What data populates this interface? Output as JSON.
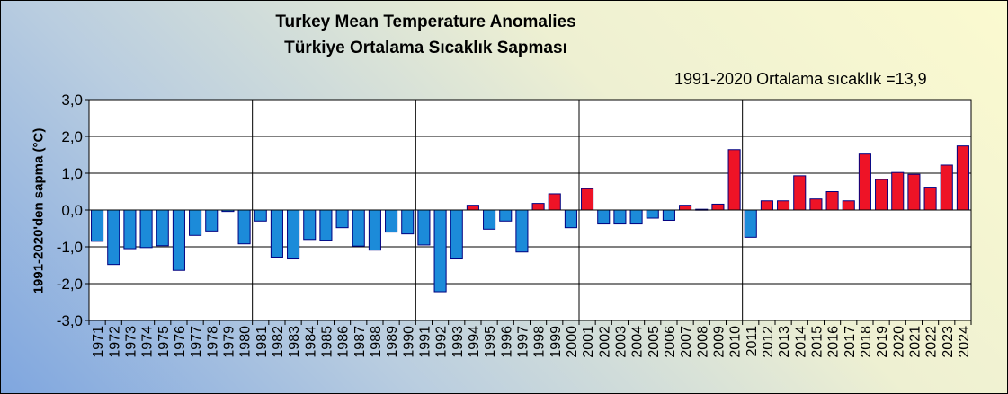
{
  "chart_data": {
    "type": "bar",
    "title": "Turkey Mean Temperature Anomalies",
    "subtitle": "Türkiye  Ortalama Sıcaklık Sapması",
    "annotation": "1991-2020 Ortalama sıcaklık =13,9",
    "xlabel": "",
    "ylabel": "1991-2020'den sapma (°C)",
    "ylim": [
      -3.0,
      3.0
    ],
    "yticks": [
      "-3,0",
      "-2,0",
      "-1,0",
      "0,0",
      "1,0",
      "2,0",
      "3,0"
    ],
    "grid": "horizontal and vertical (every 10 years)",
    "legend": "none",
    "colors": {
      "negative": "#1c8bd9",
      "positive": "#ee1326",
      "outline": "#000080",
      "grid": "#000000"
    },
    "categories": [
      "1971",
      "1972",
      "1973",
      "1974",
      "1975",
      "1976",
      "1977",
      "1978",
      "1979",
      "1980",
      "1981",
      "1982",
      "1983",
      "1984",
      "1985",
      "1986",
      "1987",
      "1988",
      "1989",
      "1990",
      "1991",
      "1992",
      "1993",
      "1994",
      "1995",
      "1996",
      "1997",
      "1998",
      "1999",
      "2000",
      "2001",
      "2002",
      "2003",
      "2004",
      "2005",
      "2006",
      "2007",
      "2008",
      "2009",
      "2010",
      "2011",
      "2012",
      "2013",
      "2014",
      "2015",
      "2016",
      "2017",
      "2018",
      "2019",
      "2020",
      "2021",
      "2022",
      "2023",
      "2024"
    ],
    "values": [
      -0.85,
      -1.48,
      -1.05,
      -1.02,
      -0.97,
      -1.64,
      -0.69,
      -0.57,
      -0.04,
      -0.92,
      -0.3,
      -1.28,
      -1.33,
      -0.8,
      -0.82,
      -0.48,
      -0.98,
      -1.09,
      -0.6,
      -0.65,
      -0.95,
      -2.22,
      -1.33,
      0.13,
      -0.52,
      -0.3,
      -1.14,
      0.18,
      0.44,
      -0.48,
      0.58,
      -0.38,
      -0.38,
      -0.38,
      -0.22,
      -0.28,
      0.13,
      0.02,
      0.16,
      1.64,
      -0.74,
      0.25,
      0.25,
      0.93,
      0.3,
      0.5,
      0.25,
      1.52,
      0.83,
      1.02,
      0.97,
      0.62,
      1.22,
      1.74
    ]
  }
}
